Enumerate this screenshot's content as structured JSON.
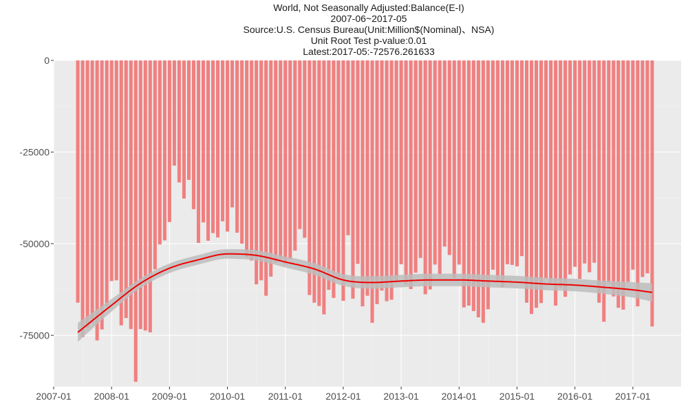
{
  "title_lines": [
    "World, Not Seasonally Adjusted:Balance(E-I)",
    "2007-06~2017-05",
    "Source:U.S. Census Bureau(Unit:Million$(Nominal)、NSA)",
    "Unit Root Test p-value:0.01",
    "Latest:2017-05:-72576.261633"
  ],
  "colors": {
    "panel": "#ebebeb",
    "grid_major": "#ffffff",
    "grid_minor": "#f4f4f4",
    "bar": "#f08080",
    "smooth_line": "#ee0000",
    "confidence_band": "#bdbdbd"
  },
  "chart_data": {
    "type": "bar",
    "title": "World, Not Seasonally Adjusted:Balance(E-I)",
    "subtitle": "2007-06~2017-05",
    "xlabel": "",
    "ylabel": "",
    "x_start": "2007-06",
    "x_end": "2017-05",
    "frequency": "monthly",
    "xlim": [
      "2007-01",
      "2017-11"
    ],
    "ylim": [
      -89000,
      0
    ],
    "x_ticks": [
      "2007-01",
      "2008-01",
      "2009-01",
      "2010-01",
      "2011-01",
      "2012-01",
      "2013-01",
      "2014-01",
      "2015-01",
      "2016-01",
      "2017-01"
    ],
    "y_ticks": [
      0,
      -25000,
      -50000,
      -75000
    ],
    "grid": true,
    "legend": "none",
    "values": [
      -66100,
      -75500,
      -73000,
      -71700,
      -76400,
      -73400,
      -67100,
      -60200,
      -60000,
      -72300,
      -70300,
      -73300,
      -87700,
      -73300,
      -73700,
      -74200,
      -57000,
      -50200,
      -49100,
      -44100,
      -28700,
      -33300,
      -37700,
      -32600,
      -40600,
      -49800,
      -44200,
      -49200,
      -47100,
      -48300,
      -43900,
      -46700,
      -40100,
      -47000,
      -50000,
      -53800,
      -54600,
      -61100,
      -60000,
      -64200,
      -59000,
      -55200,
      -54900,
      -55600,
      -54300,
      -51900,
      -46000,
      -48400,
      -64000,
      -66100,
      -67000,
      -69300,
      -62600,
      -64800,
      -60000,
      -65600,
      -47700,
      -65000,
      -55500,
      -67100,
      -64200,
      -71600,
      -66500,
      -62800,
      -65700,
      -65300,
      -60300,
      -55600,
      -61200,
      -62400,
      -57900,
      -53900,
      -63800,
      -62500,
      -55700,
      -58300,
      -50800,
      -53100,
      -59400,
      -55700,
      -67400,
      -66900,
      -68400,
      -70100,
      -71600,
      -67900,
      -57100,
      -60300,
      -61900,
      -55600,
      -55800,
      -56200,
      -53400,
      -66100,
      -69200,
      -67500,
      -66200,
      -59500,
      -61100,
      -66900,
      -62000,
      -64500,
      -58400,
      -56300,
      -59600,
      -55400,
      -57800,
      -55200,
      -66100,
      -71300,
      -60800,
      -64400,
      -67500,
      -68000,
      -60400,
      -57100,
      -67100,
      -59100,
      -58100,
      -72600
    ],
    "smooth": {
      "x": [
        "2007-06",
        "2008-01",
        "2008-07",
        "2009-01",
        "2009-07",
        "2010-01",
        "2010-07",
        "2011-01",
        "2011-07",
        "2012-01",
        "2012-07",
        "2013-01",
        "2013-07",
        "2014-01",
        "2014-07",
        "2015-01",
        "2015-07",
        "2016-01",
        "2016-07",
        "2017-01",
        "2017-05"
      ],
      "y": [
        -74200,
        -66800,
        -60800,
        -56700,
        -54400,
        -52800,
        -53200,
        -55000,
        -56900,
        -59900,
        -60600,
        -60200,
        -59900,
        -59900,
        -60200,
        -60500,
        -61000,
        -61300,
        -61900,
        -62600,
        -63300
      ],
      "se": [
        2600,
        1700,
        1300,
        1300,
        1300,
        1300,
        1400,
        1500,
        1600,
        1600,
        1700,
        1700,
        1700,
        1700,
        1700,
        1700,
        1700,
        1700,
        1800,
        2100,
        2500
      ]
    }
  }
}
